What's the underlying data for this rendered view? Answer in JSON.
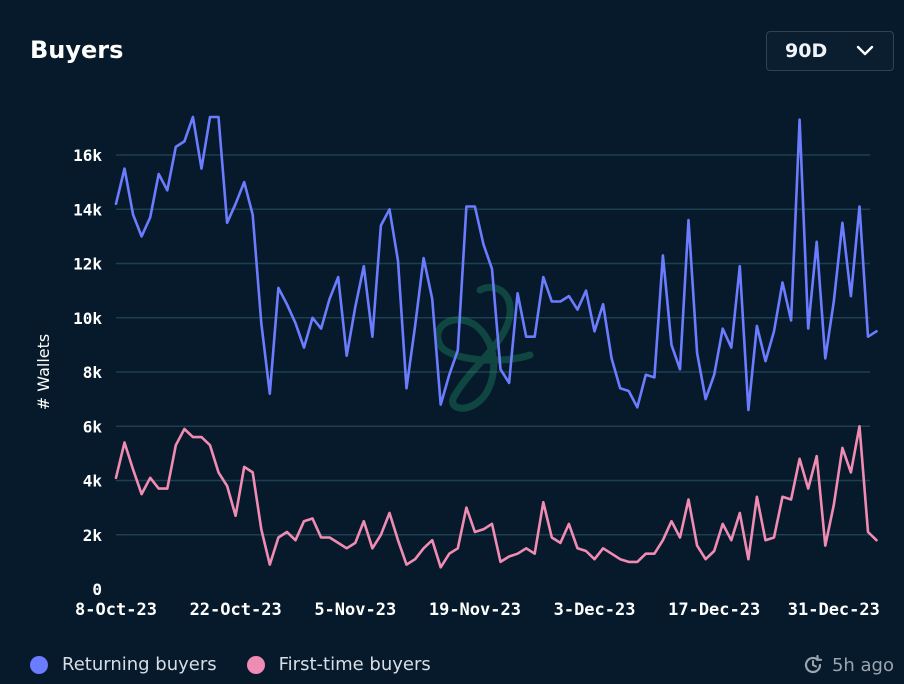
{
  "header": {
    "title": "Buyers",
    "range_value": "90D"
  },
  "legend": {
    "returning_label": "Returning buyers",
    "first_time_label": "First-time buyers"
  },
  "footer": {
    "updated_text": "5h ago"
  },
  "colors": {
    "background": "#071a2b",
    "returning": "#6b7cff",
    "first_time": "#f08cb4",
    "grid": "#1c3f52"
  },
  "chart_data": {
    "type": "line",
    "title": "Buyers",
    "xlabel": "",
    "ylabel": "# Wallets",
    "ylim": [
      0,
      16000
    ],
    "ytick_values": [
      0,
      2000,
      4000,
      6000,
      8000,
      10000,
      12000,
      14000,
      16000
    ],
    "ytick_labels": [
      "0",
      "2k",
      "4k",
      "6k",
      "8k",
      "10k",
      "12k",
      "14k",
      "16k"
    ],
    "xlim": [
      0,
      88
    ],
    "xtick_positions": [
      0,
      14,
      28,
      42,
      56,
      70,
      84
    ],
    "xtick_labels": [
      "8-Oct-23",
      "22-Oct-23",
      "5-Nov-23",
      "19-Nov-23",
      "3-Dec-23",
      "17-Dec-23",
      "31-Dec-23"
    ],
    "series": [
      {
        "name": "Returning buyers",
        "values": [
          14200,
          15500,
          13800,
          13000,
          13700,
          15300,
          14700,
          16300,
          16500,
          17400,
          15500,
          17400,
          17400,
          13500,
          14200,
          15000,
          13800,
          9800,
          7200,
          11100,
          10500,
          9800,
          8900,
          10000,
          9600,
          10700,
          11500,
          8600,
          10400,
          11900,
          9300,
          13400,
          14000,
          12100,
          7400,
          9700,
          12200,
          10700,
          6800,
          7900,
          8800,
          14100,
          14100,
          12700,
          11800,
          8100,
          7600,
          10900,
          9300,
          9300,
          11500,
          10600,
          10600,
          10800,
          10300,
          11000,
          9500,
          10500,
          8500,
          7400,
          7300,
          6700,
          7900,
          7800,
          12300,
          9000,
          8100,
          13600,
          8700,
          7000,
          7900,
          9600,
          8900,
          11900,
          6600,
          9700,
          8400,
          9500,
          11300,
          9900,
          17300,
          9600,
          12800,
          8500,
          10600,
          13500,
          10800,
          14100,
          9300,
          9500
        ]
      },
      {
        "name": "First-time buyers",
        "values": [
          4100,
          5400,
          4400,
          3500,
          4100,
          3700,
          3700,
          5300,
          5900,
          5600,
          5600,
          5300,
          4300,
          3800,
          2700,
          4500,
          4300,
          2200,
          900,
          1900,
          2100,
          1800,
          2500,
          2600,
          1900,
          1900,
          1700,
          1500,
          1700,
          2500,
          1500,
          2000,
          2800,
          1800,
          900,
          1100,
          1500,
          1800,
          800,
          1300,
          1500,
          3000,
          2100,
          2200,
          2400,
          1000,
          1200,
          1300,
          1500,
          1300,
          3200,
          1900,
          1700,
          2400,
          1500,
          1400,
          1100,
          1500,
          1300,
          1100,
          1000,
          1000,
          1300,
          1300,
          1800,
          2500,
          1900,
          3300,
          1600,
          1100,
          1400,
          2400,
          1800,
          2800,
          1100,
          3400,
          1800,
          1900,
          3400,
          3300,
          4800,
          3700,
          4900,
          1600,
          3100,
          5200,
          4300,
          6000,
          2100,
          1800
        ]
      }
    ]
  }
}
